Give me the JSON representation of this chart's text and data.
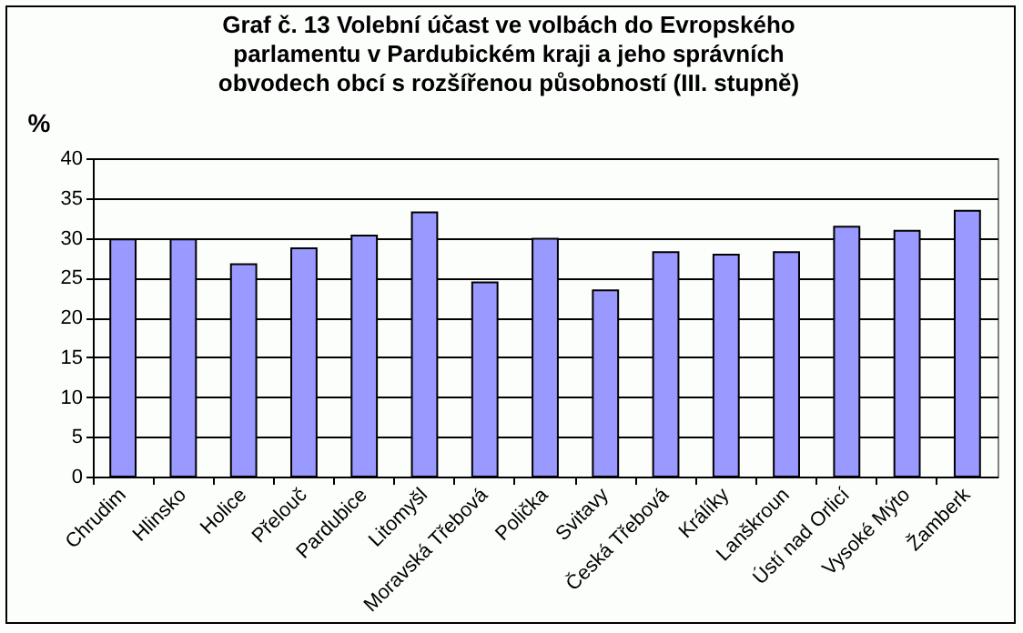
{
  "chart_data": {
    "type": "bar",
    "title": [
      "Graf č. 13  Volební účast ve volbách do Evropského",
      "parlamentu v Pardubickém kraji a jeho správních",
      "obvodech obcí s rozšířenou působností (III. stupně)"
    ],
    "ylabel": "%",
    "categories": [
      "Chrudim",
      "Hlinsko",
      "Holice",
      "Přelouč",
      "Pardubice",
      "Litomyšl",
      "Moravská Třebová",
      "Polička",
      "Svitavy",
      "Česká Třebová",
      "Králíky",
      "Lanškroun",
      "Ústí nad Orlicí",
      "Vysoké Mýto",
      "Žamberk"
    ],
    "values": [
      29.8,
      29.8,
      26.7,
      28.7,
      30.3,
      33.2,
      24.4,
      29.9,
      23.4,
      28.2,
      27.9,
      28.2,
      31.4,
      30.9,
      33.4
    ],
    "color": "#9999ff",
    "ylim": [
      0,
      40
    ],
    "yticks": [
      0,
      5,
      10,
      15,
      20,
      25,
      30,
      35,
      40
    ],
    "grid": "y"
  }
}
